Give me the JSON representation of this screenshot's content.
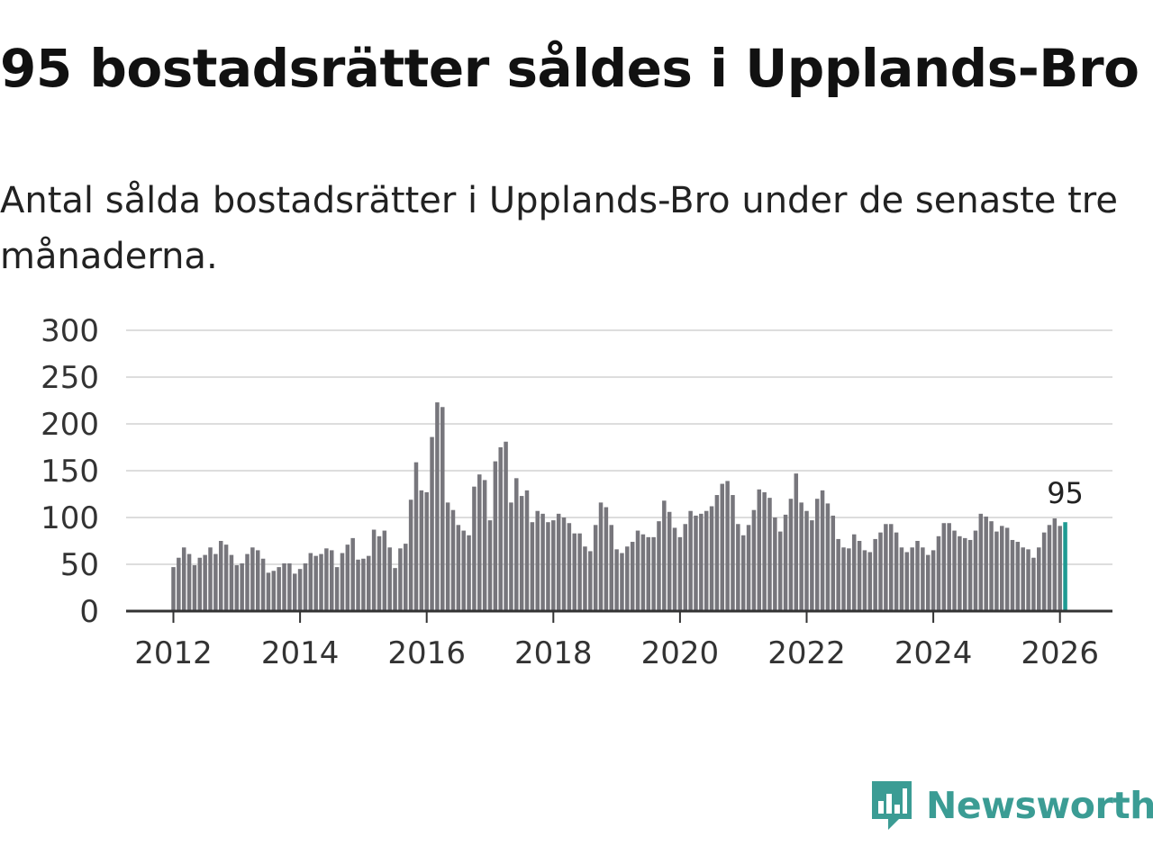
{
  "title": "95 bostadsrätter såldes i Upplands-Bro",
  "subtitle": "Antal sålda bostadsrätter i Upplands-Bro under de senaste tre månaderna.",
  "brand": {
    "name": "Newsworthy",
    "color": "#3b9c94",
    "icon": "bar-chart-speech-bubble-icon"
  },
  "colors": {
    "bar": "#77767c",
    "highlight": "#1e9a92",
    "grid": "#dddddd",
    "axis": "#333333"
  },
  "chart_data": {
    "type": "bar",
    "title": "95 bostadsrätter såldes i Upplands-Bro",
    "xlabel": "",
    "ylabel": "",
    "ylim": [
      0,
      300
    ],
    "yticks": [
      "0",
      "50",
      "100",
      "150",
      "200",
      "250",
      "300"
    ],
    "xticks": [
      "2012",
      "2014",
      "2016",
      "2018",
      "2020",
      "2022",
      "2024",
      "2026"
    ],
    "x_start": "2012-01",
    "highlight_label": "95",
    "series": [
      {
        "name": "Antal sålda bostadsrätter",
        "values": [
          47,
          57,
          68,
          61,
          49,
          57,
          60,
          68,
          61,
          75,
          71,
          60,
          49,
          51,
          61,
          68,
          65,
          56,
          41,
          43,
          47,
          51,
          51,
          40,
          45,
          51,
          62,
          59,
          61,
          67,
          65,
          47,
          62,
          71,
          78,
          55,
          56,
          59,
          87,
          80,
          86,
          68,
          46,
          67,
          72,
          119,
          159,
          129,
          127,
          186,
          223,
          218,
          116,
          108,
          92,
          86,
          81,
          133,
          146,
          140,
          97,
          160,
          175,
          181,
          116,
          142,
          123,
          129,
          95,
          107,
          104,
          95,
          97,
          104,
          100,
          94,
          83,
          83,
          69,
          64,
          92,
          116,
          111,
          92,
          66,
          62,
          69,
          74,
          86,
          82,
          79,
          79,
          96,
          118,
          106,
          89,
          79,
          93,
          107,
          102,
          104,
          107,
          112,
          124,
          136,
          139,
          124,
          93,
          81,
          92,
          108,
          130,
          127,
          121,
          100,
          85,
          103,
          120,
          147,
          116,
          107,
          97,
          120,
          129,
          115,
          102,
          77,
          68,
          67,
          82,
          75,
          65,
          63,
          77,
          84,
          93,
          93,
          84,
          68,
          63,
          68,
          75,
          68,
          60,
          65,
          80,
          94,
          94,
          86,
          80,
          78,
          76,
          86,
          104,
          101,
          96,
          85,
          91,
          89,
          76,
          74,
          68,
          66,
          57,
          68,
          84,
          92,
          99,
          91,
          95
        ]
      }
    ]
  }
}
